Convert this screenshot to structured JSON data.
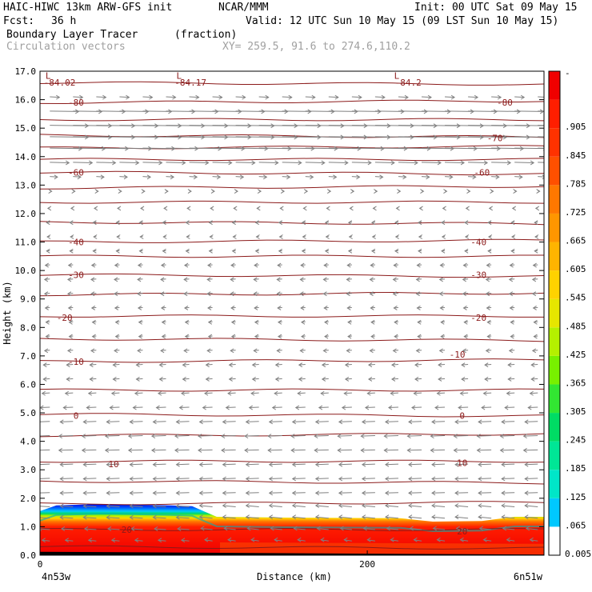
{
  "header": {
    "model": "HAIC-HIWC 13km ARW-GFS init",
    "org": "NCAR/MMM",
    "init": "Init: 00 UTC Sat 09 May 15",
    "fcst_label": "Fcst:",
    "fcst_value": "36 h",
    "valid": "Valid: 12 UTC Sun 10 May 15 (09 LST Sun 10 May 15)",
    "field_name": "Boundary Layer Tracer",
    "field_unit": "(fraction)",
    "overlay_name": "Circulation vectors",
    "xy": "XY= 259.5, 91.6 to 274.6,110.2"
  },
  "chart_data": {
    "type": "heatmap",
    "ylabel": "Height (km)",
    "xlabel": "Distance (km)",
    "ylim": [
      0,
      17
    ],
    "xlim": [
      0,
      308
    ],
    "y_ticks": [
      "0.0",
      "1.0",
      "2.0",
      "3.0",
      "4.0",
      "5.0",
      "6.0",
      "7.0",
      "8.0",
      "9.0",
      "10.0",
      "11.0",
      "12.0",
      "13.0",
      "14.0",
      "15.0",
      "16.0",
      "17.0"
    ],
    "x_ticks": [
      "0",
      "200"
    ],
    "x_tick_values": [
      0,
      200
    ],
    "x_end_labels": [
      "4n53w",
      "6n51w"
    ],
    "colorbar": {
      "labels": [
        "0.005",
        ".065",
        ".125",
        ".185",
        ".245",
        ".305",
        ".365",
        ".425",
        ".485",
        ".545",
        ".605",
        ".665",
        ".725",
        ".785",
        ".845",
        ".905"
      ],
      "colors": [
        "#ffffff",
        "#00c8ff",
        "#00e6c8",
        "#00e696",
        "#00dc64",
        "#32e632",
        "#78f000",
        "#b4f000",
        "#e6e600",
        "#ffd200",
        "#ffb400",
        "#ff9600",
        "#ff7800",
        "#ff5000",
        "#ff3200",
        "#ff1e00",
        "#f00000"
      ]
    },
    "tracer_top": [
      {
        "x": 0,
        "z": 1.55
      },
      {
        "x": 10,
        "z": 1.75
      },
      {
        "x": 40,
        "z": 1.8
      },
      {
        "x": 80,
        "z": 1.75
      },
      {
        "x": 93,
        "z": 1.72
      },
      {
        "x": 108,
        "z": 1.35
      },
      {
        "x": 150,
        "z": 1.32
      },
      {
        "x": 220,
        "z": 1.3
      },
      {
        "x": 240,
        "z": 1.18
      },
      {
        "x": 270,
        "z": 1.2
      },
      {
        "x": 290,
        "z": 1.35
      },
      {
        "x": 308,
        "z": 1.35
      }
    ],
    "isotherm_labels": [
      {
        "text": "-84.02",
        "x": 12,
        "z": 16.6
      },
      {
        "text": "-84.17",
        "x": 92,
        "z": 16.6
      },
      {
        "text": "-84.2",
        "x": 225,
        "z": 16.6
      },
      {
        "text": "-80",
        "x": 22,
        "z": 15.9
      },
      {
        "text": "-80",
        "x": 284,
        "z": 15.9
      },
      {
        "text": "-70",
        "x": 278,
        "z": 14.65
      },
      {
        "text": "-60",
        "x": 22,
        "z": 13.45
      },
      {
        "text": "-60",
        "x": 270,
        "z": 13.45
      },
      {
        "text": "-40",
        "x": 22,
        "z": 11.0
      },
      {
        "text": "-40",
        "x": 268,
        "z": 11.0
      },
      {
        "text": "-30",
        "x": 22,
        "z": 9.85
      },
      {
        "text": "-30",
        "x": 268,
        "z": 9.85
      },
      {
        "text": "-20",
        "x": 15,
        "z": 8.35
      },
      {
        "text": "-20",
        "x": 268,
        "z": 8.35
      },
      {
        "text": "-10",
        "x": 22,
        "z": 6.8
      },
      {
        "text": "-10",
        "x": 255,
        "z": 7.05
      },
      {
        "text": "0",
        "x": 22,
        "z": 4.9
      },
      {
        "text": "0",
        "x": 258,
        "z": 4.9
      },
      {
        "text": "10",
        "x": 45,
        "z": 3.2
      },
      {
        "text": "10",
        "x": 258,
        "z": 3.25
      },
      {
        "text": "20",
        "x": 53,
        "z": 0.9
      },
      {
        "text": "20",
        "x": 258,
        "z": 0.85
      }
    ],
    "pressure_min_marks": [
      {
        "text": "L",
        "x": 5,
        "z": 16.85
      },
      {
        "text": "L",
        "x": 85,
        "z": 16.85
      },
      {
        "text": "L",
        "x": 218,
        "z": 16.85
      }
    ],
    "isotherm_levels_z": [
      0.3,
      0.9,
      1.8,
      2.6,
      3.3,
      4.2,
      4.95,
      5.8,
      6.8,
      7.6,
      8.4,
      9.15,
      9.85,
      10.5,
      11.0,
      11.7,
      12.4,
      12.9,
      13.45,
      13.9,
      14.3,
      14.75,
      15.3,
      15.9,
      16.6
    ],
    "wind_rows": [
      {
        "z": 16.1,
        "u": 1.5
      },
      {
        "z": 15.6,
        "u": 4.5
      },
      {
        "z": 15.1,
        "u": 6.0
      },
      {
        "z": 14.7,
        "u": 6.0
      },
      {
        "z": 14.3,
        "u": 5.0
      },
      {
        "z": 13.8,
        "u": 3.0
      },
      {
        "z": 13.3,
        "u": 1.2
      },
      {
        "z": 12.8,
        "u": 0.3
      },
      {
        "z": 12.2,
        "u": -0.3
      },
      {
        "z": 11.7,
        "u": -0.5
      },
      {
        "z": 11.2,
        "u": -0.4
      },
      {
        "z": 10.7,
        "u": -0.5
      },
      {
        "z": 10.2,
        "u": -0.7
      },
      {
        "z": 9.7,
        "u": -0.8
      },
      {
        "z": 9.2,
        "u": -0.8
      },
      {
        "z": 8.7,
        "u": -0.7
      },
      {
        "z": 8.2,
        "u": -0.6
      },
      {
        "z": 7.7,
        "u": -0.6
      },
      {
        "z": 7.2,
        "u": -0.8
      },
      {
        "z": 6.7,
        "u": -1.0
      },
      {
        "z": 6.2,
        "u": -1.0
      },
      {
        "z": 5.7,
        "u": -1.2
      },
      {
        "z": 5.2,
        "u": -1.5
      },
      {
        "z": 4.7,
        "u": -2.0
      },
      {
        "z": 4.2,
        "u": -2.2
      },
      {
        "z": 3.7,
        "u": -2.2
      },
      {
        "z": 3.2,
        "u": -2.0
      },
      {
        "z": 2.7,
        "u": -2.0
      },
      {
        "z": 2.2,
        "u": -2.0
      },
      {
        "z": 1.7,
        "u": -2.0
      },
      {
        "z": 1.3,
        "u": -2.0
      },
      {
        "z": 0.9,
        "u": -1.8
      },
      {
        "z": 0.5,
        "u": -1.2
      }
    ],
    "colors": {
      "isotherm": "#8b1a1a",
      "vector": "#808080",
      "frame": "#000000"
    }
  }
}
